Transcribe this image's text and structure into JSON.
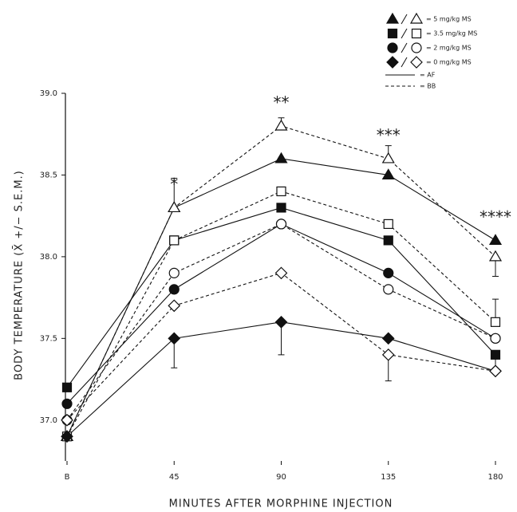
{
  "chart_data": {
    "type": "line",
    "x_label": "MINUTES AFTER MORPHINE INJECTION",
    "y_label": "BODY TEMPERATURE (X̄ +/− S.E.M.)",
    "x": [
      0,
      45,
      90,
      135,
      180
    ],
    "xlim": [
      0,
      180
    ],
    "xticks": [
      {
        "value": 0,
        "label": "B"
      },
      45,
      90,
      135,
      180
    ],
    "ylim": [
      36.75,
      39.0
    ],
    "yticks": [
      {
        "value": 37.0,
        "label": "37.0"
      },
      37.5,
      {
        "value": 38.0,
        "label": "38.0"
      },
      38.5,
      {
        "value": 39.0,
        "label": "39.0"
      }
    ],
    "color": "#111111",
    "line_styles": [
      {
        "name": "= AF",
        "dash": "none",
        "marker_fill": "#111111"
      },
      {
        "name": "= BB",
        "dash": "4 3",
        "marker_fill": "#ffffff"
      }
    ],
    "series": [
      {
        "name": "= 5 mg/kg MS",
        "marker": "triangle",
        "lines": [
          {
            "values": [
              36.9,
              38.3,
              38.6,
              38.5,
              38.1
            ],
            "errors": [
              null,
              0.18,
              null,
              null,
              null
            ]
          },
          {
            "values": [
              36.9,
              38.3,
              38.8,
              38.6,
              38.0
            ],
            "errors": [
              null,
              null,
              0.05,
              0.08,
              0.12
            ]
          }
        ]
      },
      {
        "name": "= 3.5 mg/kg MS",
        "marker": "square",
        "lines": [
          {
            "values": [
              37.2,
              38.1,
              38.3,
              38.1,
              37.4
            ],
            "errors": [
              null,
              null,
              null,
              null,
              null
            ]
          },
          {
            "values": [
              36.9,
              38.1,
              38.4,
              38.2,
              37.6
            ],
            "errors": [
              null,
              null,
              null,
              null,
              0.14
            ]
          }
        ]
      },
      {
        "name": "= 2 mg/kg MS",
        "marker": "circle",
        "lines": [
          {
            "values": [
              37.1,
              37.8,
              38.2,
              37.9,
              37.5
            ],
            "errors": [
              null,
              null,
              null,
              null,
              null
            ]
          },
          {
            "values": [
              37.0,
              37.9,
              38.2,
              37.8,
              37.5
            ],
            "errors": [
              null,
              null,
              null,
              null,
              null
            ]
          }
        ]
      },
      {
        "name": "= 0 mg/kg MS",
        "marker": "diamond",
        "lines": [
          {
            "values": [
              36.9,
              37.5,
              37.6,
              37.5,
              37.3
            ],
            "errors": [
              null,
              0.18,
              0.2,
              null,
              0.12
            ]
          },
          {
            "values": [
              37.0,
              37.7,
              37.9,
              37.4,
              37.3
            ],
            "errors": [
              null,
              null,
              null,
              0.16,
              null
            ]
          }
        ]
      }
    ],
    "annotations": [
      "*",
      "**",
      "***",
      "****"
    ]
  }
}
